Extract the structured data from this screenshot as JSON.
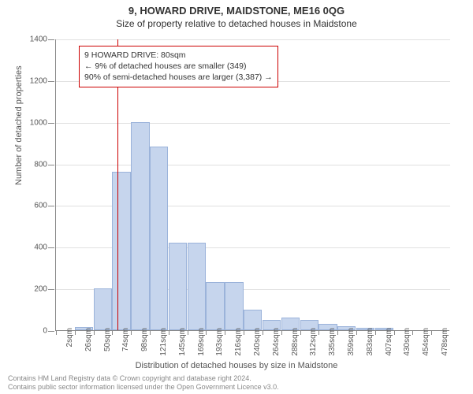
{
  "header": {
    "line1": "9, HOWARD DRIVE, MAIDSTONE, ME16 0QG",
    "line2": "Size of property relative to detached houses in Maidstone"
  },
  "chart": {
    "type": "histogram",
    "ylabel": "Number of detached properties",
    "xlabel": "Distribution of detached houses by size in Maidstone",
    "ylim": [
      0,
      1400
    ],
    "ytick_step": 200,
    "yticks": [
      0,
      200,
      400,
      600,
      800,
      1000,
      1200,
      1400
    ],
    "xticks": [
      "2sqm",
      "26sqm",
      "50sqm",
      "74sqm",
      "98sqm",
      "121sqm",
      "145sqm",
      "169sqm",
      "193sqm",
      "216sqm",
      "240sqm",
      "264sqm",
      "288sqm",
      "312sqm",
      "335sqm",
      "359sqm",
      "383sqm",
      "407sqm",
      "430sqm",
      "454sqm",
      "478sqm"
    ],
    "bars": [
      0,
      15,
      200,
      760,
      1000,
      880,
      420,
      420,
      230,
      230,
      100,
      50,
      60,
      50,
      30,
      20,
      10,
      10,
      0,
      0,
      0
    ],
    "bar_fill": "#c6d5ed",
    "bar_border": "#9bb3da",
    "grid_color": "#e0e0e0",
    "background_color": "#ffffff",
    "axis_color": "#888888",
    "reference_line": {
      "color": "#cc0000",
      "position_category_index": 3.26
    }
  },
  "legend": {
    "line1": "9 HOWARD DRIVE: 80sqm",
    "line2": "← 9% of detached houses are smaller (349)",
    "line3": "90% of semi-detached houses are larger (3,387) →",
    "border_color": "#cc0000"
  },
  "footer": {
    "line1": "Contains HM Land Registry data © Crown copyright and database right 2024.",
    "line2": "Contains public sector information licensed under the Open Government Licence v3.0."
  }
}
